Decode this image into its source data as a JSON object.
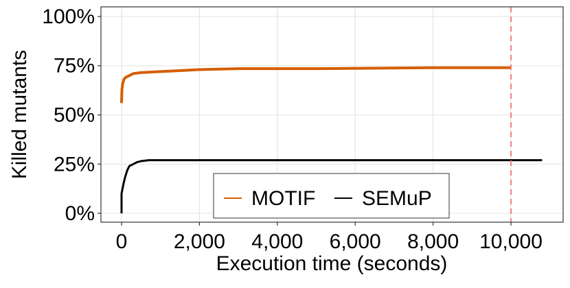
{
  "chart_data": {
    "type": "line",
    "x_label": "Execution time (seconds)",
    "y_label": "Killed mutants",
    "series": [
      {
        "name": "MOTIF",
        "color": "#d55e00",
        "x": [
          0,
          10,
          30,
          60,
          100,
          200,
          300,
          500,
          1000,
          2000,
          3000,
          5000,
          8000,
          10000
        ],
        "values": [
          56,
          63,
          66,
          68,
          69,
          70,
          71,
          71.5,
          72,
          73,
          73.5,
          73.5,
          74,
          74
        ]
      },
      {
        "name": "SEMuP",
        "color": "#000000",
        "x": [
          0,
          0,
          50,
          100,
          150,
          200,
          300,
          400,
          500,
          700,
          1000,
          10800
        ],
        "values": [
          0,
          10,
          15,
          19,
          22,
          24,
          25,
          26,
          26.5,
          27,
          27,
          27
        ]
      }
    ],
    "xlim": [
      -529,
      11340
    ],
    "ylim": [
      -4.5,
      104.9
    ],
    "xticks": [
      0,
      {
        "value": 2000,
        "label": "2,000"
      },
      {
        "value": 4000,
        "label": "4,000"
      },
      {
        "value": 6000,
        "label": "6,000"
      },
      {
        "value": 8000,
        "label": "8,000"
      },
      {
        "value": 10000,
        "label": "10,000"
      }
    ],
    "yticks": [
      {
        "value": 0,
        "label": "0%"
      },
      {
        "value": 25,
        "label": "25%"
      },
      {
        "value": 50,
        "label": "50%"
      },
      {
        "value": 75,
        "label": "75%"
      },
      {
        "value": 100,
        "label": "100%"
      }
    ],
    "vline": {
      "x": 10000,
      "color": "#f08080"
    },
    "grid": true,
    "legend": "bottom"
  }
}
